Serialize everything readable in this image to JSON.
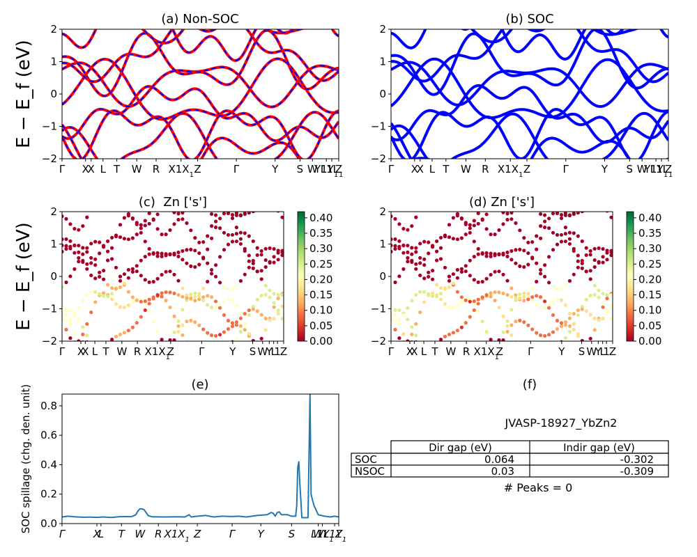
{
  "figure_id": "JVASP-18927_YbZn2",
  "colors": {
    "nonsoc_solid": "#ff0000",
    "nonsoc_dash": "#0000ff",
    "soc": "#0000ff",
    "spillage": "#1f77b4",
    "colormap": [
      "#a50026",
      "#d73027",
      "#f46d43",
      "#fdae61",
      "#fee08b",
      "#ffffbf",
      "#d9ef8b",
      "#a6d96a",
      "#66bd63",
      "#1a9850",
      "#006837"
    ]
  },
  "chart_data": [
    {
      "panel": "a",
      "type": "line",
      "title": "(a) Non-SOC",
      "ylabel": "E − E_f (eV)",
      "ylim": [
        -2,
        2
      ],
      "yticks": [
        "−2",
        "−1",
        "0",
        "1",
        "2"
      ],
      "kpath_labels": [
        "Γ",
        "X",
        "X",
        "L",
        "T",
        "W",
        "R",
        "X1",
        "Z",
        "Γ",
        "Y",
        "S",
        "W",
        "Y1",
        "L1",
        "Z"
      ],
      "kpath_positions": [
        0,
        0.085,
        0.105,
        0.148,
        0.198,
        0.27,
        0.34,
        0.43,
        0.49,
        0.63,
        0.77,
        0.86,
        0.905,
        0.955,
        0.975,
        1.0
      ],
      "line_style": "red solid with blue dashed overlay"
    },
    {
      "panel": "b",
      "type": "line",
      "title": "(b) SOC",
      "ylim": [
        -2,
        2
      ],
      "yticks": [
        "−2",
        "−1",
        "0",
        "1",
        "2"
      ],
      "kpath_labels": [
        "Γ",
        "X",
        "X",
        "L",
        "T",
        "W",
        "R",
        "X1",
        "Z",
        "Γ",
        "Y",
        "S",
        "W",
        "Y1",
        "L1",
        "Z"
      ],
      "kpath_positions": [
        0,
        0.085,
        0.105,
        0.148,
        0.198,
        0.27,
        0.34,
        0.43,
        0.49,
        0.63,
        0.77,
        0.86,
        0.905,
        0.955,
        0.975,
        1.0
      ],
      "line_style": "blue solid"
    },
    {
      "panel": "c",
      "type": "scatter",
      "title": "(c)  Zn ['s']",
      "ylabel": "E − E_f (eV)",
      "ylim": [
        -2,
        2
      ],
      "yticks": [
        "−2",
        "−1",
        "0",
        "1",
        "2"
      ],
      "kpath_labels": [
        "Γ",
        "X",
        "X",
        "L",
        "T",
        "W",
        "R",
        "X1",
        "Z",
        "Γ",
        "Y",
        "S",
        "W",
        "Y",
        "L",
        "1",
        "Z"
      ],
      "kpath_positions": [
        0,
        0.085,
        0.105,
        0.148,
        0.198,
        0.27,
        0.34,
        0.43,
        0.49,
        0.63,
        0.77,
        0.86,
        0.905,
        0.935,
        0.955,
        0.972,
        1.0
      ],
      "colorbar_ticks": [
        "0.00",
        "0.05",
        "0.10",
        "0.15",
        "0.20",
        "0.25",
        "0.30",
        "0.35",
        "0.40"
      ],
      "colorbar_range": [
        0,
        0.42
      ]
    },
    {
      "panel": "d",
      "type": "scatter",
      "title": "(d) Zn ['s']",
      "ylim": [
        -2,
        2
      ],
      "yticks": [
        "−2",
        "−1",
        "0",
        "1",
        "2"
      ],
      "kpath_labels": [
        "Γ",
        "X",
        "X",
        "L",
        "T",
        "W",
        "R",
        "X1",
        "Z",
        "Γ",
        "Y",
        "S",
        "W",
        "Y",
        "L",
        "1",
        "Z"
      ],
      "kpath_positions": [
        0,
        0.085,
        0.105,
        0.148,
        0.198,
        0.27,
        0.34,
        0.43,
        0.49,
        0.63,
        0.77,
        0.86,
        0.905,
        0.935,
        0.955,
        0.972,
        1.0
      ],
      "colorbar_ticks": [
        "0.00",
        "0.05",
        "0.10",
        "0.15",
        "0.20",
        "0.25",
        "0.30",
        "0.35",
        "0.40"
      ],
      "colorbar_range": [
        0,
        0.42
      ]
    },
    {
      "panel": "e",
      "type": "line",
      "title": "(e)",
      "ylabel": "SOC spillage (chg. den. unit)",
      "ylim": [
        0,
        0.88
      ],
      "yticks": [
        "0.0",
        "0.2",
        "0.4",
        "0.6",
        "0.8"
      ],
      "ytick_values": [
        0,
        0.2,
        0.4,
        0.6,
        0.8
      ],
      "kpath_labels": [
        "Γ",
        "X",
        "L",
        "T",
        "W",
        "R",
        "X1",
        "Z",
        "Γ",
        "Y",
        "S",
        "W",
        "L1",
        "Y1",
        "Z"
      ],
      "kpath_positions": [
        0,
        0.17,
        0.19,
        0.29,
        0.38,
        0.47,
        0.56,
        0.66,
        0.83,
        0.97,
        1.12,
        1.25,
        1.27,
        1.33,
        1.35
      ],
      "x_max": 1.35,
      "series": [
        {
          "x": [
            0,
            0.03,
            0.06,
            0.1,
            0.14,
            0.17,
            0.2,
            0.24,
            0.28,
            0.34,
            0.36,
            0.37,
            0.38,
            0.39,
            0.4,
            0.41,
            0.42,
            0.44,
            0.5,
            0.56,
            0.6,
            0.62,
            0.63,
            0.66,
            0.7,
            0.74,
            0.78,
            0.83,
            0.86,
            0.9,
            0.95,
            1.0,
            1.02,
            1.03,
            1.04,
            1.05,
            1.06,
            1.07,
            1.1,
            1.12,
            1.14,
            1.145,
            1.15,
            1.155,
            1.16,
            1.17,
            1.18,
            1.185,
            1.19,
            1.2,
            1.21,
            1.212,
            1.215,
            1.22,
            1.23,
            1.25,
            1.28,
            1.31,
            1.33,
            1.35
          ],
          "values": [
            0.045,
            0.05,
            0.046,
            0.043,
            0.044,
            0.042,
            0.045,
            0.041,
            0.047,
            0.048,
            0.06,
            0.085,
            0.1,
            0.1,
            0.095,
            0.075,
            0.055,
            0.046,
            0.045,
            0.046,
            0.045,
            0.06,
            0.045,
            0.05,
            0.055,
            0.045,
            0.05,
            0.048,
            0.05,
            0.045,
            0.055,
            0.06,
            0.075,
            0.07,
            0.05,
            0.075,
            0.08,
            0.06,
            0.06,
            0.05,
            0.05,
            0.12,
            0.38,
            0.42,
            0.28,
            0.04,
            0.04,
            0.04,
            0.04,
            0.04,
            0.88,
            0.6,
            0.2,
            0.17,
            0.12,
            0.06,
            0.05,
            0.045,
            0.05,
            0.045
          ]
        }
      ]
    },
    {
      "panel": "f",
      "type": "table",
      "title": "(f)",
      "subtitle": "JVASP-18927_YbZn2",
      "columns": [
        "",
        "Dir gap (eV)",
        "Indir gap (eV)"
      ],
      "rows": [
        [
          "SOC",
          "0.064",
          "-0.302"
        ],
        [
          "NSOC",
          "0.03",
          "-0.309"
        ]
      ],
      "footer": "# Peaks = 0"
    }
  ]
}
